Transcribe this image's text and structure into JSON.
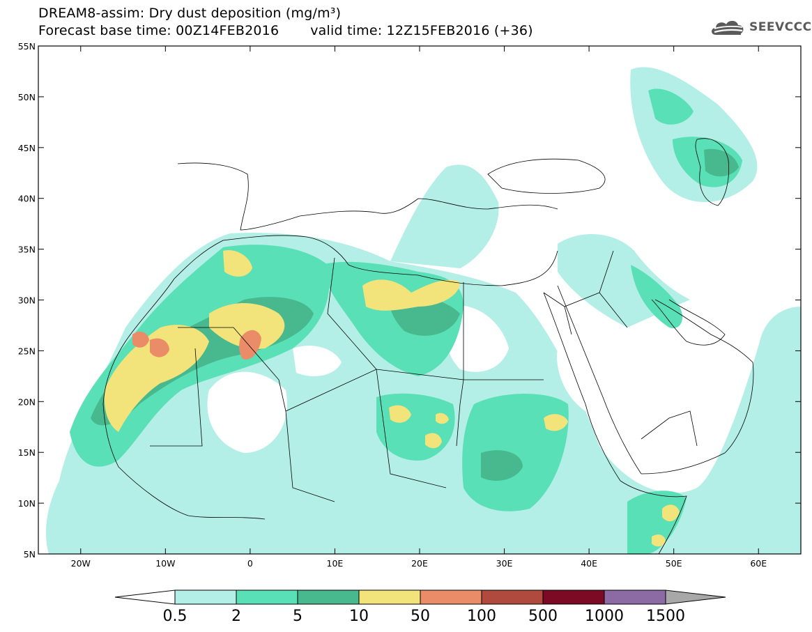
{
  "title": {
    "line1": "DREAM8-assim: Dry dust deposition (mg/m³)",
    "base_time": "Forecast base time: 00Z14FEB2016",
    "valid_time": "valid time: 12Z15FEB2016 (+36)"
  },
  "logo": {
    "icon": "cloud-logo-icon",
    "text": "SEEVCCC"
  },
  "map": {
    "lon_range": [
      -25,
      65
    ],
    "lat_range": [
      5,
      55
    ],
    "lon_ticks": [
      {
        "value": -20,
        "label": "20W"
      },
      {
        "value": -10,
        "label": "10W"
      },
      {
        "value": 0,
        "label": "0"
      },
      {
        "value": 10,
        "label": "10E"
      },
      {
        "value": 20,
        "label": "20E"
      },
      {
        "value": 30,
        "label": "30E"
      },
      {
        "value": 40,
        "label": "40E"
      },
      {
        "value": 50,
        "label": "50E"
      },
      {
        "value": 60,
        "label": "60E"
      }
    ],
    "lat_ticks": [
      {
        "value": 55,
        "label": "55N"
      },
      {
        "value": 50,
        "label": "50N"
      },
      {
        "value": 45,
        "label": "45N"
      },
      {
        "value": 40,
        "label": "40N"
      },
      {
        "value": 35,
        "label": "35N"
      },
      {
        "value": 30,
        "label": "30N"
      },
      {
        "value": 25,
        "label": "25N"
      },
      {
        "value": 20,
        "label": "20N"
      },
      {
        "value": 15,
        "label": "15N"
      },
      {
        "value": 10,
        "label": "10N"
      },
      {
        "value": 5,
        "label": "5N"
      }
    ]
  },
  "colorbar": {
    "colors": [
      "#b3efe6",
      "#5ae0b6",
      "#48b98e",
      "#f2e37a",
      "#eb8c68",
      "#b04a3e",
      "#7c0a25",
      "#8c6aa4"
    ],
    "under_color": "#ffffff",
    "over_color": "#a8a8a8",
    "labels": [
      "0.5",
      "2",
      "5",
      "10",
      "50",
      "100",
      "500",
      "1000",
      "1500"
    ]
  }
}
